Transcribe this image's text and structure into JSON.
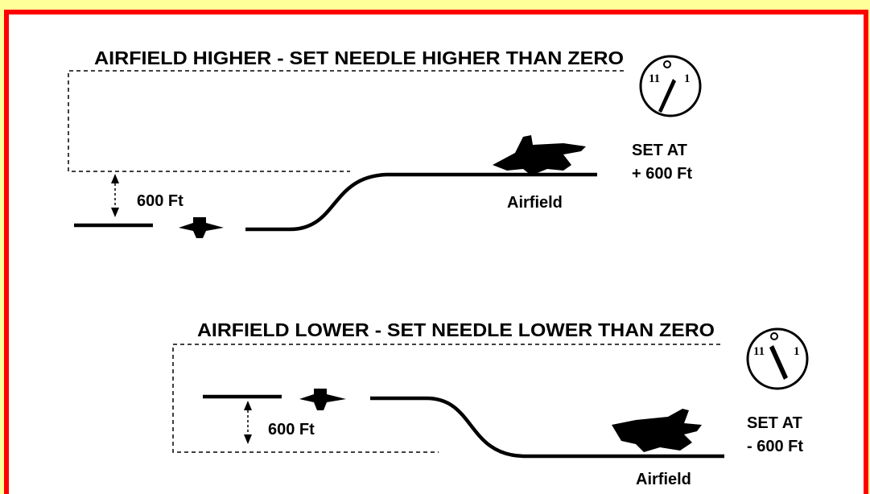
{
  "panels": [
    {
      "title": "AIRFIELD HIGHER - SET NEEDLE HIGHER THAN  ZERO",
      "height_label": "600 Ft",
      "airfield_label": "Airfield",
      "setting": [
        "SET AT",
        "+ 600 Ft"
      ],
      "gauge": {
        "left": "11",
        "right": "1"
      }
    },
    {
      "title": "AIRFIELD LOWER - SET NEEDLE LOWER THAN  ZERO",
      "height_label": "600 Ft",
      "airfield_label": "Airfield",
      "setting": [
        "SET AT",
        "- 600 Ft"
      ],
      "gauge": {
        "left": "11",
        "right": "1"
      }
    }
  ]
}
